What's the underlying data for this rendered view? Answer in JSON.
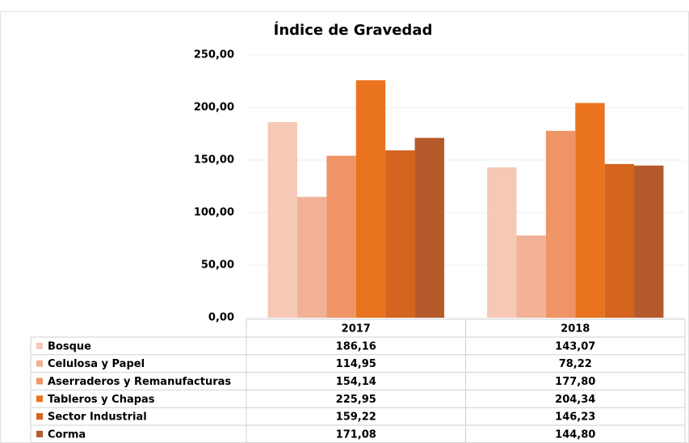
{
  "chart_data": {
    "type": "bar",
    "title": "Índice de Gravedad",
    "categories": [
      "2017",
      "2018"
    ],
    "series": [
      {
        "name": "Bosque",
        "color": "#f5c9b6",
        "values": [
          186.16,
          143.07
        ],
        "value_labels": [
          "186,16",
          "143,07"
        ]
      },
      {
        "name": "Celulosa y Papel",
        "color": "#f2b197",
        "values": [
          114.95,
          78.22
        ],
        "value_labels": [
          "114,95",
          "78,22"
        ]
      },
      {
        "name": "Aserraderos y Remanufacturas",
        "color": "#ef9466",
        "values": [
          154.14,
          177.8
        ],
        "value_labels": [
          "154,14",
          "177,80"
        ]
      },
      {
        "name": "Tableros y Chapas",
        "color": "#e9731f",
        "values": [
          225.95,
          204.34
        ],
        "value_labels": [
          "225,95",
          "204,34"
        ]
      },
      {
        "name": "Sector Industrial",
        "color": "#d4641e",
        "values": [
          159.22,
          146.23
        ],
        "value_labels": [
          "159,22",
          "146,23"
        ]
      },
      {
        "name": "Corma",
        "color": "#b55a2a",
        "values": [
          171.08,
          144.8
        ],
        "value_labels": [
          "171,08",
          "144,80"
        ]
      }
    ],
    "ylim": [
      0,
      250
    ],
    "yticks": [
      {
        "value": 0,
        "label": "0,00"
      },
      {
        "value": 50,
        "label": "50,00"
      },
      {
        "value": 100,
        "label": "100,00"
      },
      {
        "value": 150,
        "label": "150,00"
      },
      {
        "value": 200,
        "label": "200,00"
      },
      {
        "value": 250,
        "label": "250,00"
      }
    ],
    "grid": true
  }
}
